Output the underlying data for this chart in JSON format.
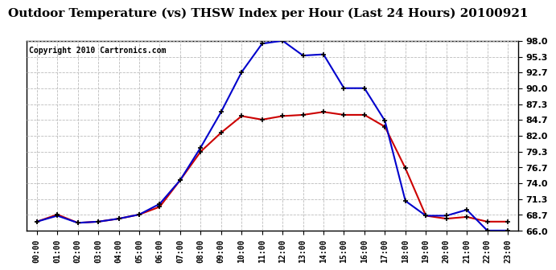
{
  "title": "Outdoor Temperature (vs) THSW Index per Hour (Last 24 Hours) 20100921",
  "copyright": "Copyright 2010 Cartronics.com",
  "hours": [
    "00:00",
    "01:00",
    "02:00",
    "03:00",
    "04:00",
    "05:00",
    "06:00",
    "07:00",
    "08:00",
    "09:00",
    "10:00",
    "11:00",
    "12:00",
    "13:00",
    "14:00",
    "15:00",
    "16:00",
    "17:00",
    "18:00",
    "19:00",
    "20:00",
    "21:00",
    "22:00",
    "23:00"
  ],
  "outdoor_temp": [
    67.5,
    68.7,
    67.3,
    67.5,
    68.0,
    68.7,
    70.0,
    74.5,
    79.3,
    82.5,
    85.3,
    84.7,
    85.3,
    85.5,
    86.0,
    85.5,
    85.5,
    83.5,
    76.5,
    68.5,
    68.0,
    68.3,
    67.5,
    67.5
  ],
  "thsw_index": [
    67.5,
    68.5,
    67.3,
    67.5,
    68.0,
    68.7,
    70.5,
    74.5,
    80.0,
    86.0,
    92.7,
    97.5,
    98.0,
    95.5,
    95.7,
    90.0,
    90.0,
    84.5,
    71.0,
    68.5,
    68.5,
    69.5,
    66.0,
    66.0
  ],
  "temp_color": "#cc0000",
  "thsw_color": "#0000cc",
  "marker": "+",
  "markersize": 5,
  "linewidth": 1.5,
  "markeredgewidth": 1.2,
  "background_color": "#ffffff",
  "plot_bg_color": "#ffffff",
  "grid_color": "#bbbbbb",
  "title_fontsize": 11,
  "copyright_fontsize": 7,
  "ylim": [
    66.0,
    98.0
  ],
  "yticks": [
    66.0,
    68.7,
    71.3,
    74.0,
    76.7,
    79.3,
    82.0,
    84.7,
    87.3,
    90.0,
    92.7,
    95.3,
    98.0
  ],
  "ylabel_fontsize": 8,
  "xlabel_fontsize": 7
}
